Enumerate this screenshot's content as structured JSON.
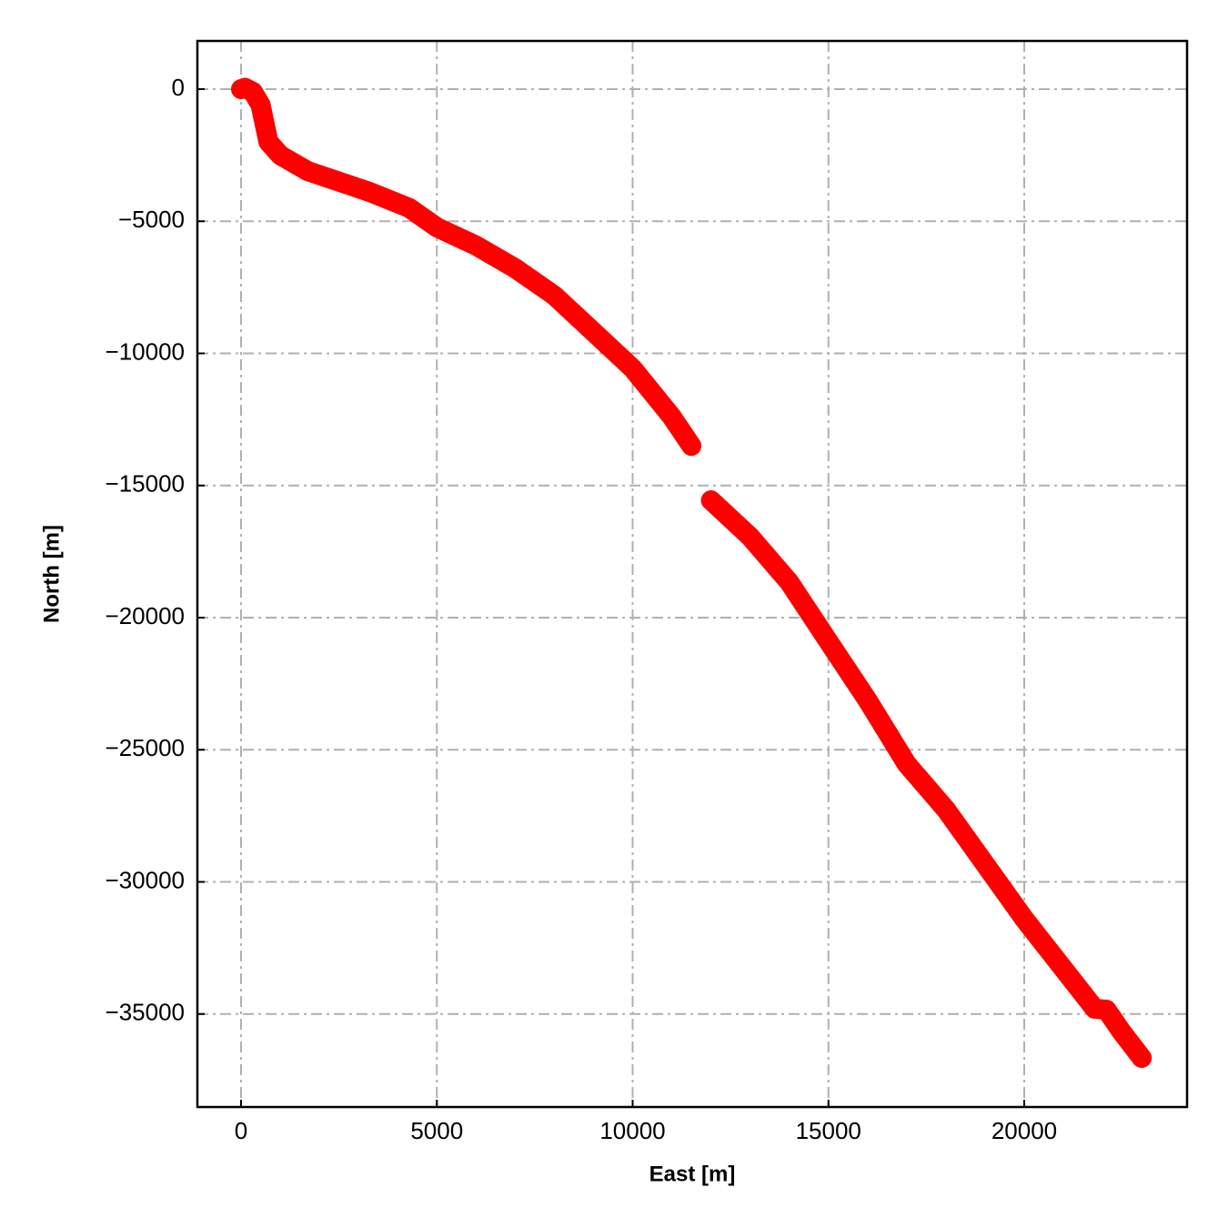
{
  "chart_data": {
    "type": "line",
    "xlabel": "East [m]",
    "ylabel": "North [m]",
    "x": [
      0,
      100,
      300,
      500,
      600,
      700,
      1000,
      1700,
      2500,
      3300,
      4300,
      5000,
      6000,
      7000,
      8000,
      9000,
      10000,
      11000,
      11500,
      11300,
      12000,
      13000,
      14000,
      15000,
      16000,
      17000,
      18000,
      19000,
      20000,
      21000,
      21800,
      22100,
      22500,
      23000
    ],
    "series": [
      {
        "color": "#ff0000",
        "values": [
          0,
          50,
          -100,
          -600,
          -1300,
          -2000,
          -2500,
          -3100,
          -3500,
          -3900,
          -4500,
          -5230,
          -5920,
          -6780,
          -7810,
          -9190,
          -10570,
          -12400,
          -13500,
          null,
          -15560,
          -16940,
          -18660,
          -20900,
          -23130,
          -25540,
          -27260,
          -29330,
          -31400,
          -33290,
          -34800,
          -34840,
          -35700,
          -36660
        ]
      }
    ],
    "xlim": [
      -1115,
      24158
    ],
    "ylim": [
      -38520,
      1824
    ],
    "xticks": [
      0,
      5000,
      10000,
      15000,
      20000
    ],
    "yticks": [
      0,
      {
        "value": -5000,
        "label": "−5000"
      },
      {
        "value": -10000,
        "label": "−10000"
      },
      {
        "value": -15000,
        "label": "−15000"
      },
      {
        "value": -20000,
        "label": "−20000"
      },
      {
        "value": -25000,
        "label": "−25000"
      },
      {
        "value": -30000,
        "label": "−30000"
      },
      {
        "value": -35000,
        "label": "−35000"
      }
    ],
    "grid": true
  }
}
